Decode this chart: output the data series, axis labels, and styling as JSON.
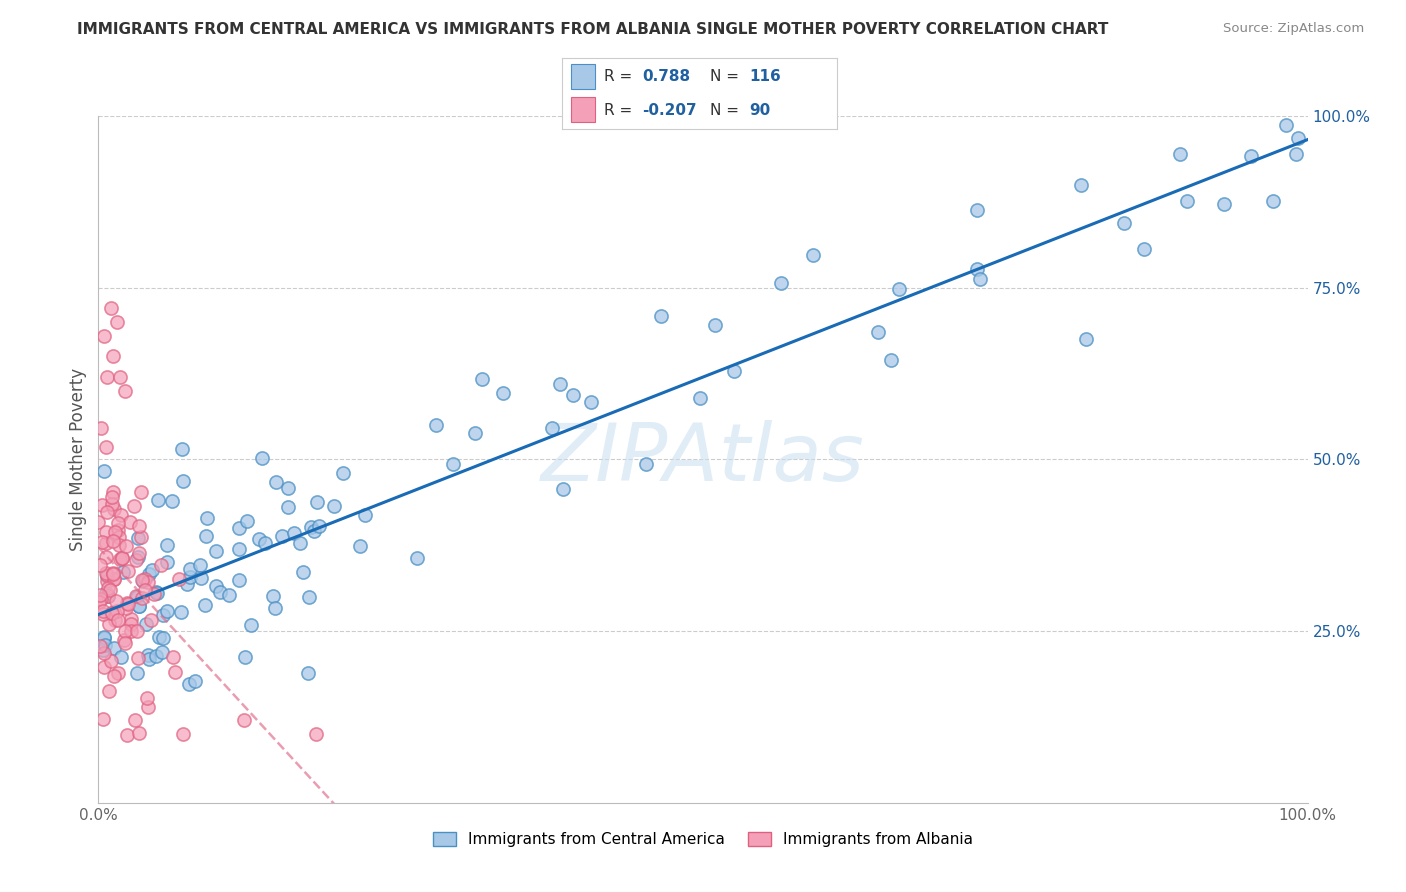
{
  "title": "IMMIGRANTS FROM CENTRAL AMERICA VS IMMIGRANTS FROM ALBANIA SINGLE MOTHER POVERTY CORRELATION CHART",
  "source": "Source: ZipAtlas.com",
  "ylabel": "Single Mother Poverty",
  "legend_blue_r": "0.788",
  "legend_blue_n": "116",
  "legend_pink_r": "-0.207",
  "legend_pink_n": "90",
  "legend_label_blue": "Immigrants from Central America",
  "legend_label_pink": "Immigrants from Albania",
  "blue_fill": "#a8c8e8",
  "blue_edge": "#4a90c4",
  "pink_fill": "#f4a0b8",
  "pink_edge": "#e06080",
  "blue_line_color": "#1a6bb5",
  "pink_line_color": "#e06888",
  "text_color": "#333333",
  "source_color": "#888888",
  "grid_color": "#cccccc",
  "right_tick_color": "#2060a0",
  "watermark_color": "#c8dff0"
}
